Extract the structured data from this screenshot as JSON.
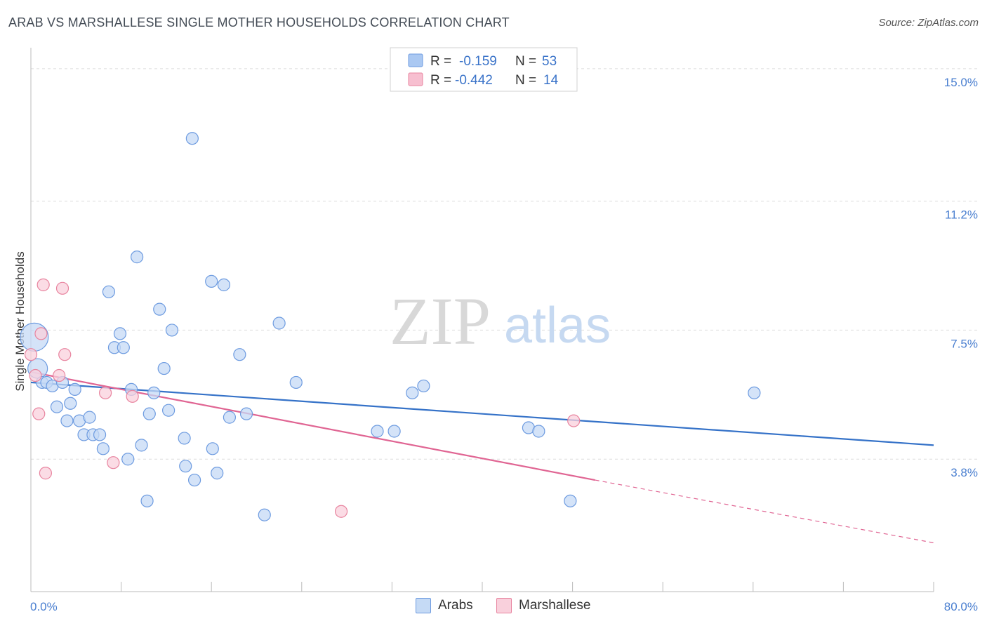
{
  "title": "ARAB VS MARSHALLESE SINGLE MOTHER HOUSEHOLDS CORRELATION CHART",
  "source": "Source: ZipAtlas.com",
  "watermark": {
    "zip": "ZIP",
    "atlas": "atlas"
  },
  "legend": {
    "rows": [
      {
        "r_label": "R =",
        "r_value": "-0.159",
        "n_label": "N =",
        "n_value": "53",
        "color": "#aac8f2",
        "stroke": "#6d9be0"
      },
      {
        "r_label": "R =",
        "r_value": "-0.442",
        "n_label": "N =",
        "n_value": "14",
        "color": "#f7bfd0",
        "stroke": "#e8849f"
      }
    ]
  },
  "colors": {
    "arabs_fill": "#c5daf5",
    "arabs_stroke": "#6d9be0",
    "arabs_line": "#3572c8",
    "marsh_fill": "#f9d0dc",
    "marsh_stroke": "#e8849f",
    "marsh_line": "#e06593",
    "axis_label": "#4a7fd0",
    "grid": "#dcdcdc"
  },
  "chart_data": {
    "type": "scatter",
    "title": "ARAB VS MARSHALLESE SINGLE MOTHER HOUSEHOLDS CORRELATION CHART",
    "xlabel": "",
    "ylabel": "Single Mother Households",
    "xlim": [
      0,
      80
    ],
    "ylim": [
      0,
      15.4
    ],
    "x_tick_labels": [
      "0.0%",
      "80.0%"
    ],
    "y_ticks": [
      3.8,
      7.5,
      11.2,
      15.0
    ],
    "y_tick_labels": [
      "3.8%",
      "7.5%",
      "11.2%",
      "15.0%"
    ],
    "grid": "horizontal dashed",
    "legend_position": "top-center",
    "series": [
      {
        "name": "Arabs",
        "points": [
          [
            0.3,
            7.3,
            "L"
          ],
          [
            0.6,
            6.4,
            "M"
          ],
          [
            1.0,
            6.0
          ],
          [
            1.4,
            6.0
          ],
          [
            1.9,
            5.9
          ],
          [
            2.3,
            5.3
          ],
          [
            2.8,
            6.0
          ],
          [
            3.2,
            4.9
          ],
          [
            3.5,
            5.4
          ],
          [
            3.9,
            5.8
          ],
          [
            4.3,
            4.9
          ],
          [
            4.7,
            4.5
          ],
          [
            5.2,
            5.0
          ],
          [
            5.5,
            4.5
          ],
          [
            6.1,
            4.5
          ],
          [
            6.4,
            4.1
          ],
          [
            7.4,
            7.0
          ],
          [
            7.9,
            7.4
          ],
          [
            8.2,
            7.0
          ],
          [
            6.9,
            8.6
          ],
          [
            8.6,
            3.8
          ],
          [
            8.9,
            5.8
          ],
          [
            9.4,
            9.6
          ],
          [
            9.8,
            4.2
          ],
          [
            10.3,
            2.6
          ],
          [
            10.5,
            5.1
          ],
          [
            10.9,
            5.7
          ],
          [
            11.4,
            8.1
          ],
          [
            11.8,
            6.4
          ],
          [
            12.2,
            5.2
          ],
          [
            12.5,
            7.5
          ],
          [
            13.6,
            4.4
          ],
          [
            13.7,
            3.6
          ],
          [
            14.3,
            13.0
          ],
          [
            14.5,
            3.2
          ],
          [
            16.1,
            4.1
          ],
          [
            16.5,
            3.4
          ],
          [
            16.0,
            8.9
          ],
          [
            17.1,
            8.8
          ],
          [
            17.6,
            5.0
          ],
          [
            18.5,
            6.8
          ],
          [
            19.1,
            5.1
          ],
          [
            20.7,
            2.2
          ],
          [
            22.0,
            7.7
          ],
          [
            23.5,
            6.0
          ],
          [
            30.7,
            4.6
          ],
          [
            32.2,
            4.6
          ],
          [
            33.8,
            5.7
          ],
          [
            34.8,
            5.9
          ],
          [
            44.1,
            4.7
          ],
          [
            45.0,
            4.6
          ],
          [
            47.8,
            2.6
          ],
          [
            64.1,
            5.7
          ]
        ],
        "trend": {
          "x0": 0,
          "y0": 6.0,
          "x1": 80,
          "y1": 4.2
        }
      },
      {
        "name": "Marshallese",
        "points": [
          [
            0.0,
            6.8
          ],
          [
            0.7,
            5.1
          ],
          [
            0.9,
            7.4
          ],
          [
            1.1,
            8.8
          ],
          [
            1.3,
            3.4
          ],
          [
            2.5,
            6.2
          ],
          [
            2.8,
            8.7
          ],
          [
            3.0,
            6.8
          ],
          [
            6.6,
            5.7
          ],
          [
            7.3,
            3.7
          ],
          [
            9.0,
            5.6
          ],
          [
            27.5,
            2.3
          ],
          [
            48.1,
            4.9
          ],
          [
            0.4,
            6.2
          ]
        ],
        "trend": {
          "x0": 0,
          "y0": 6.3,
          "x1": 50,
          "y1": 3.2,
          "dash_to_x": 80,
          "dash_to_y": 1.4
        }
      }
    ]
  },
  "bottom_legend": [
    {
      "label": "Arabs",
      "color": "#c5daf5",
      "stroke": "#6d9be0"
    },
    {
      "label": "Marshallese",
      "color": "#f9d0dc",
      "stroke": "#e8849f"
    }
  ]
}
